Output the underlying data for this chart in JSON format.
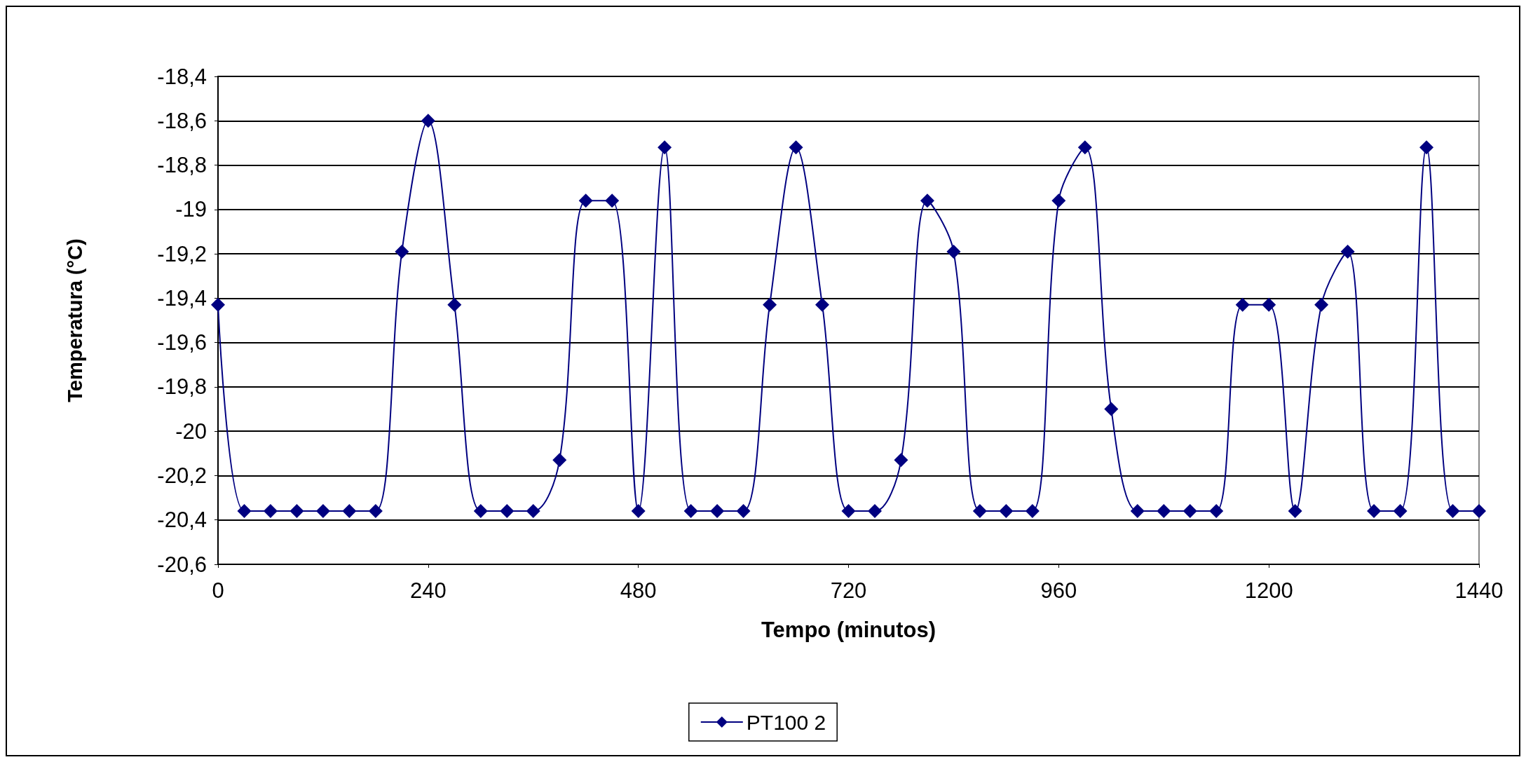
{
  "chart_data": {
    "type": "line",
    "xlabel": "Tempo (minutos)",
    "ylabel": "Temperatura (°C)",
    "x": [
      0,
      30,
      60,
      90,
      120,
      150,
      180,
      210,
      240,
      270,
      300,
      330,
      360,
      390,
      420,
      450,
      480,
      510,
      540,
      570,
      600,
      630,
      660,
      690,
      720,
      750,
      780,
      810,
      840,
      870,
      900,
      930,
      960,
      990,
      1020,
      1050,
      1080,
      1110,
      1140,
      1170,
      1200,
      1230,
      1260,
      1290,
      1320,
      1350,
      1380,
      1410,
      1440
    ],
    "series": [
      {
        "name": "PT100 2",
        "color": "#000080",
        "values": [
          -19.43,
          -20.36,
          -20.36,
          -20.36,
          -20.36,
          -20.36,
          -20.36,
          -19.19,
          -18.6,
          -19.43,
          -20.36,
          -20.36,
          -20.36,
          -20.13,
          -18.96,
          -18.96,
          -20.36,
          -18.72,
          -20.36,
          -20.36,
          -20.36,
          -19.43,
          -18.72,
          -19.43,
          -20.36,
          -20.36,
          -20.13,
          -18.96,
          -19.19,
          -20.36,
          -20.36,
          -20.36,
          -18.96,
          -18.72,
          -19.9,
          -20.36,
          -20.36,
          -20.36,
          -20.36,
          -19.43,
          -19.43,
          -20.36,
          -19.43,
          -19.19,
          -20.36,
          -20.36,
          -18.72,
          -20.36,
          -20.36
        ]
      }
    ],
    "xlim": [
      0,
      1440
    ],
    "xticks": [
      0,
      240,
      480,
      720,
      960,
      1200,
      1440
    ],
    "ylim": [
      -20.6,
      -18.4
    ],
    "yticks": [
      {
        "value": -20.6,
        "label": "-20,6"
      },
      {
        "value": -20.4,
        "label": "-20,4"
      },
      {
        "value": -20.2,
        "label": "-20,2"
      },
      -20,
      {
        "value": -19.8,
        "label": "-19,8"
      },
      {
        "value": -19.6,
        "label": "-19,6"
      },
      {
        "value": -19.4,
        "label": "-19,4"
      },
      {
        "value": -19.2,
        "label": "-19,2"
      },
      -19,
      {
        "value": -18.8,
        "label": "-18,8"
      },
      {
        "value": -18.6,
        "label": "-18,6"
      },
      {
        "value": -18.4,
        "label": "-18,4"
      }
    ],
    "grid": "y",
    "legend": "bottom",
    "marker": "diamond",
    "line_style": "solid"
  }
}
